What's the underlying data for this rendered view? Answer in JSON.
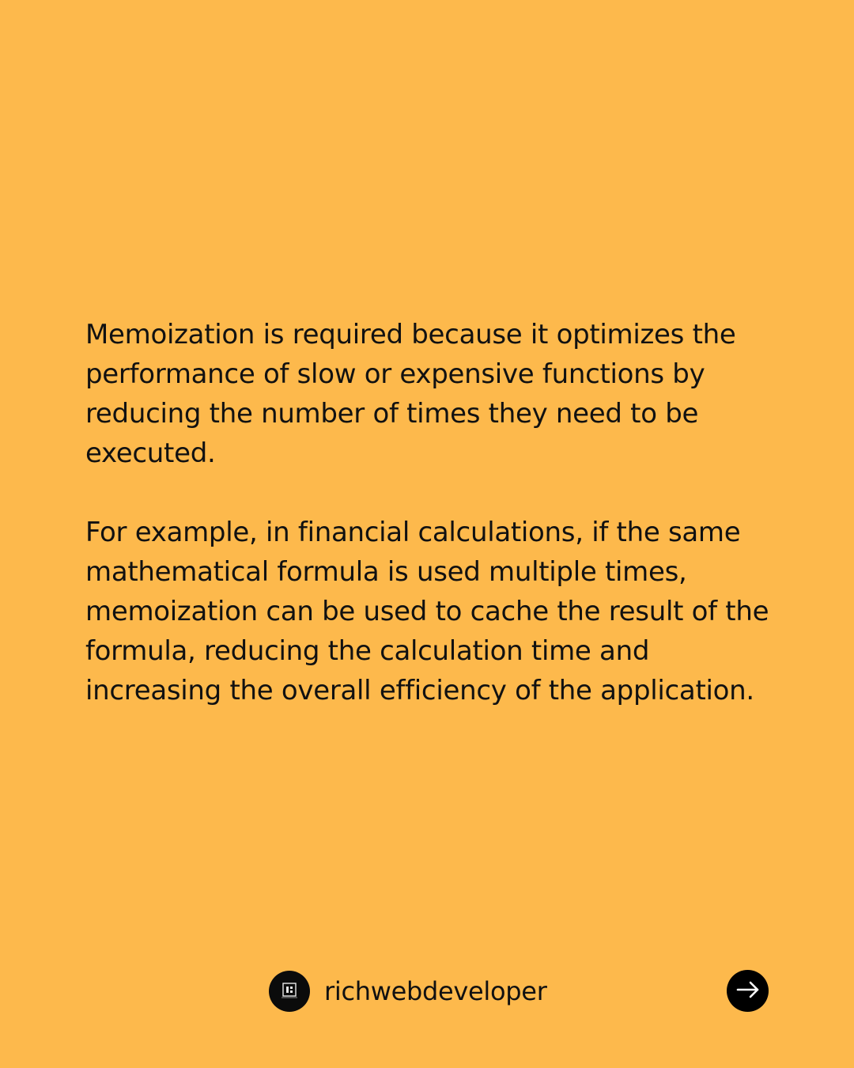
{
  "post": {
    "paragraphs": [
      "Memoization is required because it optimizes the performance of slow or expensive functions by reducing the number of times they need to be executed.",
      "For example, in financial calculations, if the same mathematical formula is used multiple times, memoization can be used to cache the result of the formula, reducing the calculation time and increasing the overall efficiency of the application."
    ]
  },
  "footer": {
    "handle": "richwebdeveloper",
    "avatar_icon": "logo-icon",
    "next_icon": "arrow-right-icon"
  },
  "colors": {
    "background": "#FDB94C",
    "text": "#111111",
    "button": "#000000"
  }
}
